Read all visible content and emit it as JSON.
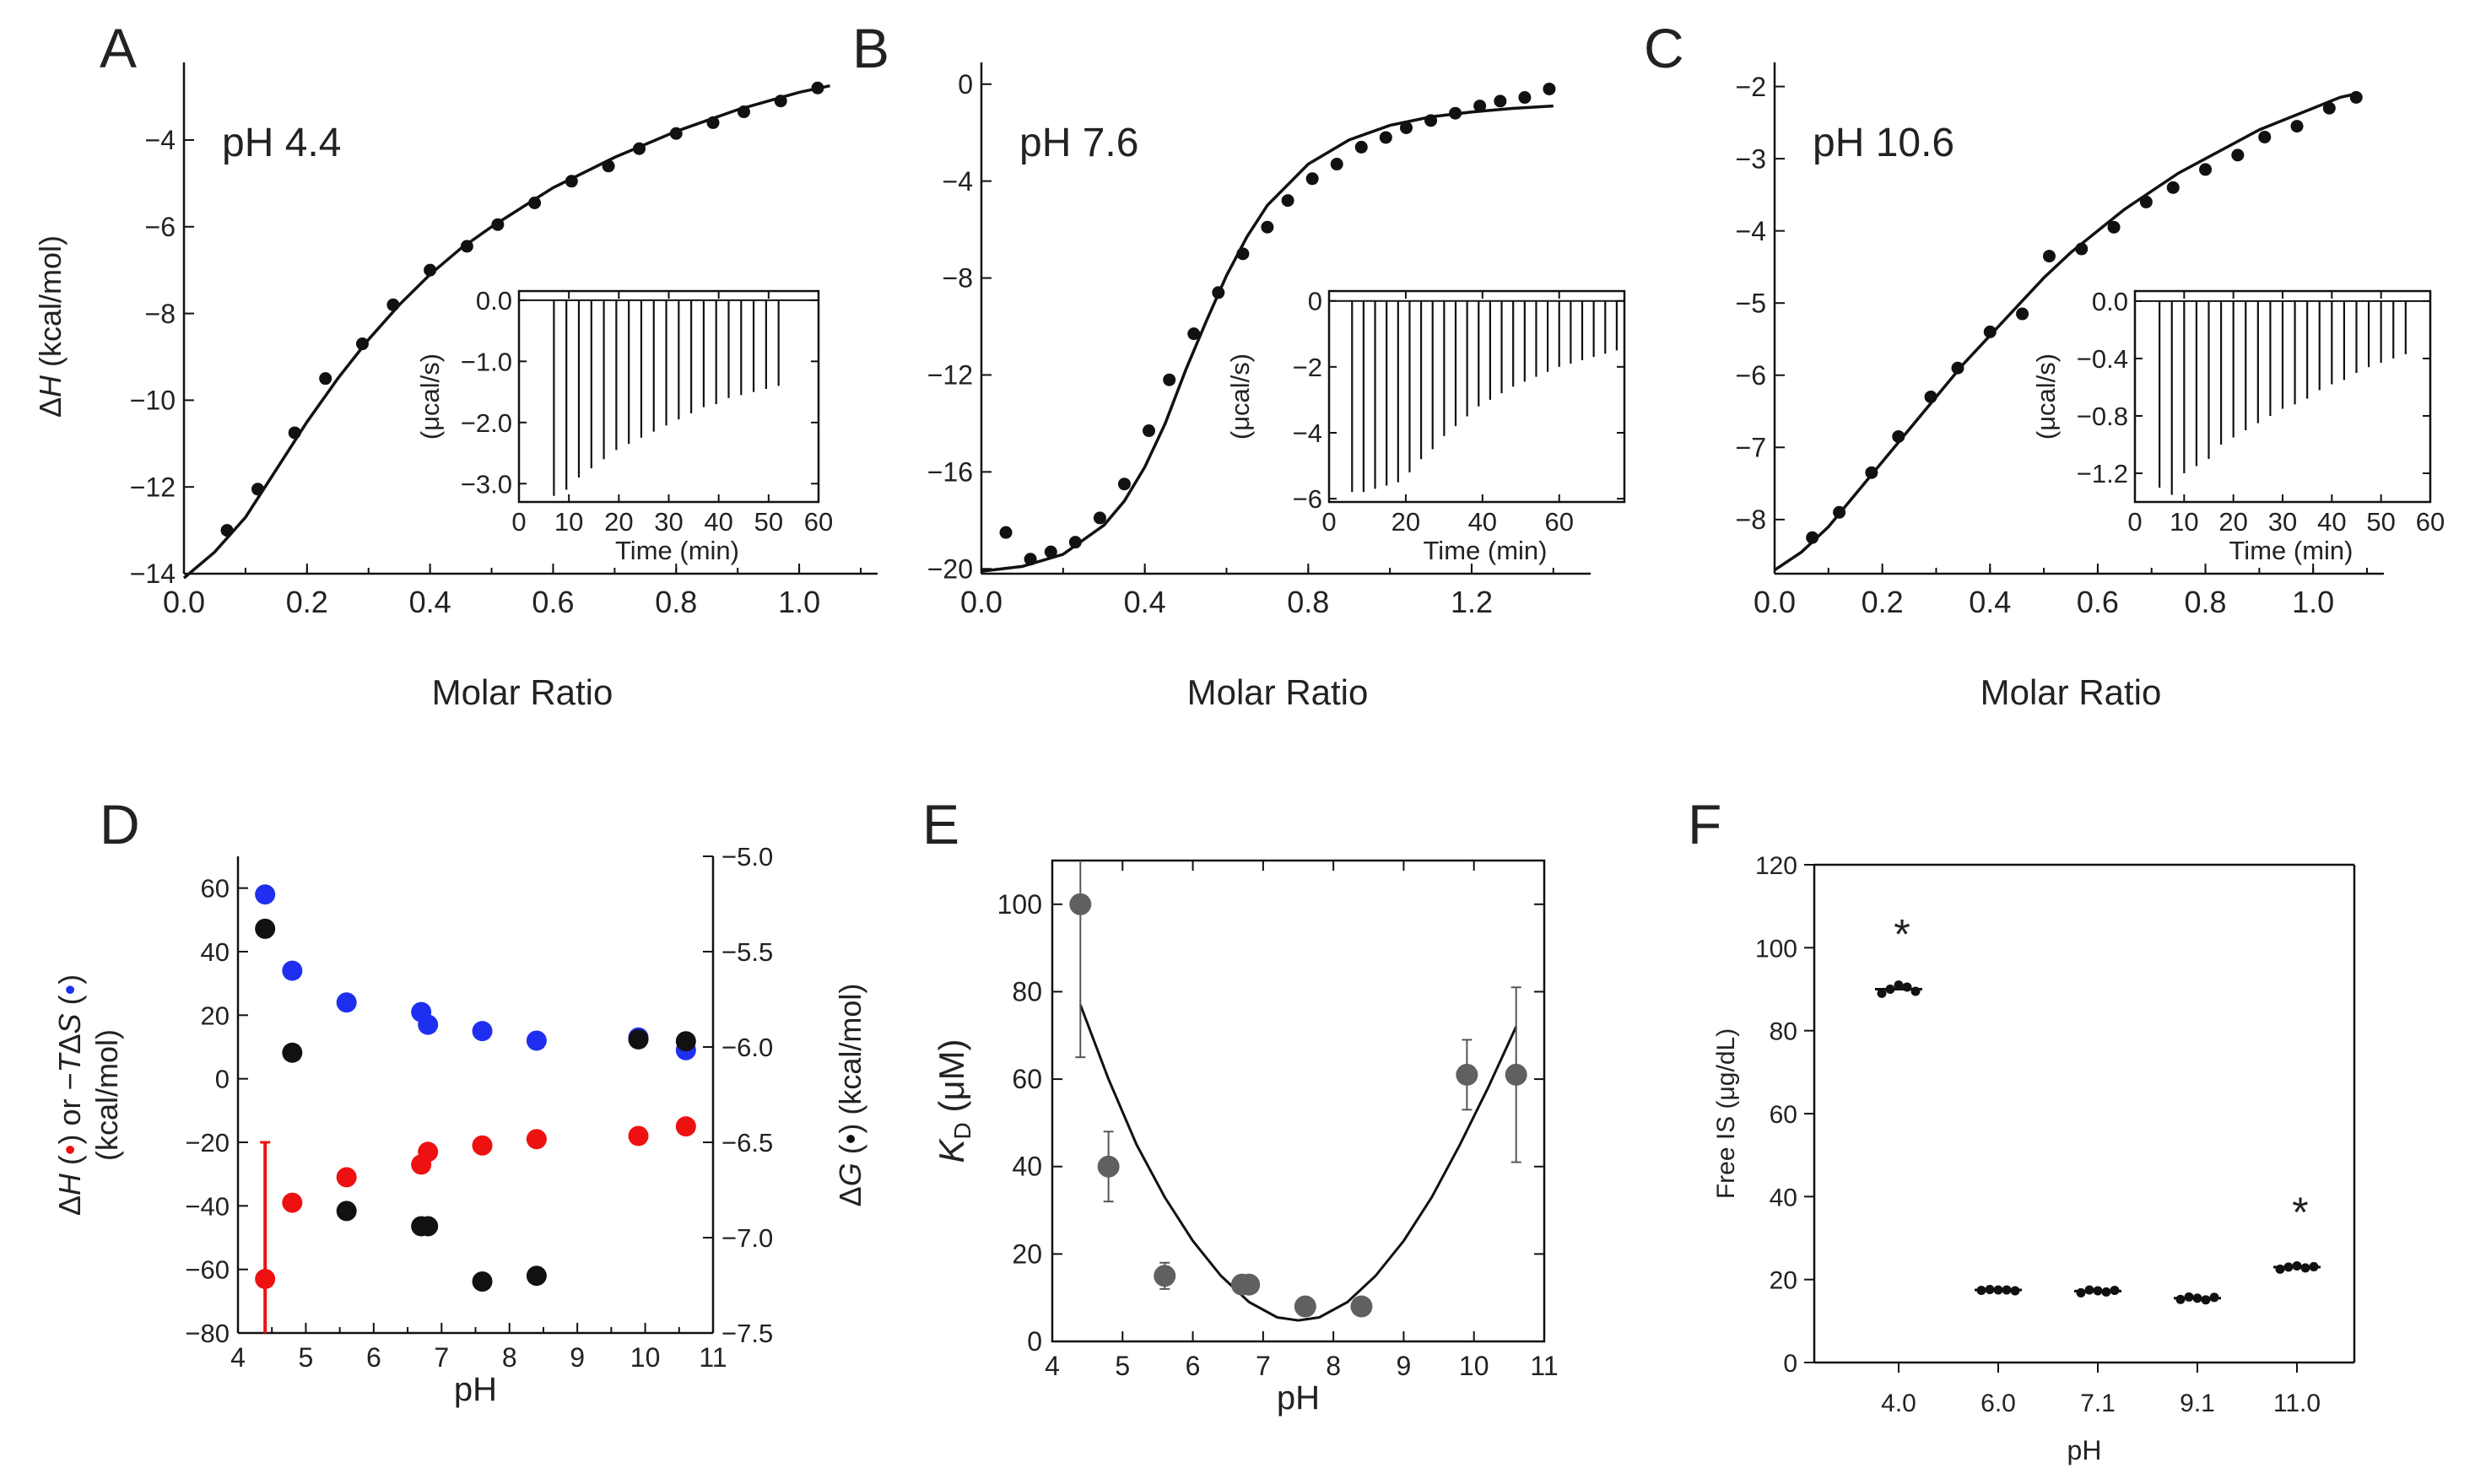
{
  "chart_data": [
    {
      "panel": "A",
      "type": "scatter",
      "annotation": "pH 4.4",
      "xlabel": "Molar Ratio",
      "ylabel_prefix": "Δ",
      "ylabel_var": "H",
      "ylabel_suffix": " (kcal/mol)",
      "xlim": [
        0.0,
        1.1
      ],
      "ylim": [
        -14,
        -2.6
      ],
      "xticks": [
        "0.0",
        "0.2",
        "0.4",
        "0.6",
        "0.8",
        "1.0"
      ],
      "xtick_values": [
        0,
        0.2,
        0.4,
        0.6,
        0.8,
        1.0
      ],
      "yticks": [
        "−14",
        "−12",
        "−10",
        "−8",
        "−6",
        "−4"
      ],
      "ytick_values": [
        -14,
        -12,
        -10,
        -8,
        -6,
        -4
      ],
      "points": [
        [
          0.07,
          -13.0
        ],
        [
          0.12,
          -12.05
        ],
        [
          0.18,
          -10.75
        ],
        [
          0.23,
          -9.5
        ],
        [
          0.29,
          -8.7
        ],
        [
          0.34,
          -7.8
        ],
        [
          0.4,
          -7.0
        ],
        [
          0.46,
          -6.45
        ],
        [
          0.51,
          -5.95
        ],
        [
          0.57,
          -5.45
        ],
        [
          0.63,
          -4.95
        ],
        [
          0.69,
          -4.6
        ],
        [
          0.74,
          -4.2
        ],
        [
          0.8,
          -3.85
        ],
        [
          0.86,
          -3.6
        ],
        [
          0.91,
          -3.35
        ],
        [
          0.97,
          -3.1
        ],
        [
          1.03,
          -2.8
        ]
      ],
      "fit": [
        [
          0.0,
          -14.1
        ],
        [
          0.05,
          -13.5
        ],
        [
          0.1,
          -12.7
        ],
        [
          0.15,
          -11.6
        ],
        [
          0.2,
          -10.5
        ],
        [
          0.25,
          -9.5
        ],
        [
          0.3,
          -8.6
        ],
        [
          0.35,
          -7.8
        ],
        [
          0.4,
          -7.1
        ],
        [
          0.45,
          -6.5
        ],
        [
          0.5,
          -6.0
        ],
        [
          0.55,
          -5.55
        ],
        [
          0.6,
          -5.1
        ],
        [
          0.65,
          -4.75
        ],
        [
          0.7,
          -4.4
        ],
        [
          0.75,
          -4.1
        ],
        [
          0.8,
          -3.8
        ],
        [
          0.85,
          -3.55
        ],
        [
          0.9,
          -3.3
        ],
        [
          0.95,
          -3.1
        ],
        [
          1.0,
          -2.9
        ],
        [
          1.05,
          -2.75
        ]
      ],
      "inset": {
        "xlabel": "Time (min)",
        "ylabel": "(μcal/s)",
        "xlim": [
          0,
          60
        ],
        "ylim": [
          -3.3,
          0.15
        ],
        "xticks": [
          "0",
          "10",
          "20",
          "30",
          "40",
          "50",
          "60"
        ],
        "xtick_values": [
          0,
          10,
          20,
          30,
          40,
          50,
          60
        ],
        "yticks": [
          "0.0",
          "−1.0",
          "−2.0",
          "−3.0"
        ],
        "ytick_values": [
          0,
          -1,
          -2,
          -3
        ],
        "spike_times": [
          7,
          9.5,
          12,
          14.5,
          17,
          19.5,
          22,
          24.5,
          27,
          29.5,
          32,
          34.5,
          37,
          39.5,
          42,
          44.5,
          47,
          49.5,
          52
        ],
        "spike_depths": [
          -3.2,
          -3.1,
          -2.9,
          -2.75,
          -2.6,
          -2.45,
          -2.35,
          -2.25,
          -2.15,
          -2.05,
          -1.95,
          -1.85,
          -1.75,
          -1.7,
          -1.6,
          -1.55,
          -1.5,
          -1.45,
          -1.4
        ]
      }
    },
    {
      "panel": "B",
      "type": "scatter",
      "annotation": "pH 7.6",
      "xlabel": "Molar Ratio",
      "xlim": [
        0.0,
        1.45
      ],
      "ylim": [
        -20.2,
        0.2
      ],
      "xticks": [
        "0.0",
        "0.4",
        "0.8",
        "1.2"
      ],
      "xtick_values": [
        0,
        0.4,
        0.8,
        1.2
      ],
      "yticks": [
        "−20",
        "−16",
        "−12",
        "−8",
        "−4",
        "0"
      ],
      "ytick_values": [
        -20,
        -16,
        -12,
        -8,
        -4,
        0
      ],
      "points": [
        [
          0.06,
          -18.5
        ],
        [
          0.12,
          -19.6
        ],
        [
          0.17,
          -19.3
        ],
        [
          0.23,
          -18.9
        ],
        [
          0.29,
          -17.9
        ],
        [
          0.35,
          -16.5
        ],
        [
          0.41,
          -14.3
        ],
        [
          0.46,
          -12.2
        ],
        [
          0.52,
          -10.3
        ],
        [
          0.58,
          -8.6
        ],
        [
          0.64,
          -7.0
        ],
        [
          0.7,
          -5.9
        ],
        [
          0.75,
          -4.8
        ],
        [
          0.81,
          -3.9
        ],
        [
          0.87,
          -3.3
        ],
        [
          0.93,
          -2.6
        ],
        [
          0.99,
          -2.2
        ],
        [
          1.04,
          -1.8
        ],
        [
          1.1,
          -1.5
        ],
        [
          1.16,
          -1.2
        ],
        [
          1.22,
          -0.9
        ],
        [
          1.27,
          -0.7
        ],
        [
          1.33,
          -0.55
        ],
        [
          1.39,
          -0.2
        ]
      ],
      "fit": [
        [
          0.0,
          -20.1
        ],
        [
          0.1,
          -19.9
        ],
        [
          0.2,
          -19.4
        ],
        [
          0.3,
          -18.2
        ],
        [
          0.35,
          -17.2
        ],
        [
          0.4,
          -15.8
        ],
        [
          0.45,
          -14.0
        ],
        [
          0.5,
          -11.8
        ],
        [
          0.55,
          -9.8
        ],
        [
          0.6,
          -7.9
        ],
        [
          0.65,
          -6.3
        ],
        [
          0.7,
          -5.0
        ],
        [
          0.8,
          -3.3
        ],
        [
          0.9,
          -2.3
        ],
        [
          1.0,
          -1.7
        ],
        [
          1.1,
          -1.35
        ],
        [
          1.2,
          -1.15
        ],
        [
          1.3,
          -1.0
        ],
        [
          1.4,
          -0.9
        ]
      ],
      "inset": {
        "xlabel": "Time (min)",
        "ylabel": "(μcal/s)",
        "xlim": [
          0,
          77
        ],
        "ylim": [
          -6.1,
          0.3
        ],
        "xticks": [
          "0",
          "20",
          "40",
          "60"
        ],
        "xtick_values": [
          0,
          20,
          40,
          60
        ],
        "yticks": [
          "0",
          "−2",
          "−4",
          "−6"
        ],
        "ytick_values": [
          0,
          -2,
          -4,
          -6
        ],
        "spike_times": [
          6,
          9,
          12,
          15,
          18,
          21,
          24,
          27,
          30,
          33,
          36,
          39,
          42,
          45,
          48,
          51,
          54,
          57,
          60,
          63,
          66,
          69,
          72,
          75
        ],
        "spike_depths": [
          -5.8,
          -5.8,
          -5.7,
          -5.6,
          -5.5,
          -5.2,
          -4.8,
          -4.5,
          -4.1,
          -3.8,
          -3.5,
          -3.2,
          -3.0,
          -2.8,
          -2.6,
          -2.45,
          -2.3,
          -2.15,
          -2.0,
          -1.9,
          -1.8,
          -1.7,
          -1.6,
          -1.5
        ]
      }
    },
    {
      "panel": "C",
      "type": "scatter",
      "annotation": "pH 10.6",
      "xlabel": "Molar Ratio",
      "xlim": [
        0.0,
        1.1
      ],
      "ylim": [
        -8.75,
        -1.9
      ],
      "xticks": [
        "0.0",
        "0.2",
        "0.4",
        "0.6",
        "0.8",
        "1.0"
      ],
      "xtick_values": [
        0,
        0.2,
        0.4,
        0.6,
        0.8,
        1.0
      ],
      "yticks": [
        "−8",
        "−7",
        "−6",
        "−5",
        "−4",
        "−3",
        "−2"
      ],
      "ytick_values": [
        -8,
        -7,
        -6,
        -5,
        -4,
        -3,
        -2
      ],
      "points": [
        [
          0.07,
          -8.25
        ],
        [
          0.12,
          -7.9
        ],
        [
          0.18,
          -7.35
        ],
        [
          0.23,
          -6.85
        ],
        [
          0.29,
          -6.3
        ],
        [
          0.34,
          -5.9
        ],
        [
          0.4,
          -5.4
        ],
        [
          0.46,
          -5.15
        ],
        [
          0.51,
          -4.35
        ],
        [
          0.57,
          -4.25
        ],
        [
          0.63,
          -3.95
        ],
        [
          0.69,
          -3.6
        ],
        [
          0.74,
          -3.4
        ],
        [
          0.8,
          -3.15
        ],
        [
          0.86,
          -2.95
        ],
        [
          0.91,
          -2.7
        ],
        [
          0.97,
          -2.55
        ],
        [
          1.03,
          -2.3
        ],
        [
          1.08,
          -2.15
        ]
      ],
      "fit": [
        [
          0.0,
          -8.7
        ],
        [
          0.05,
          -8.45
        ],
        [
          0.1,
          -8.1
        ],
        [
          0.15,
          -7.65
        ],
        [
          0.2,
          -7.2
        ],
        [
          0.25,
          -6.75
        ],
        [
          0.3,
          -6.3
        ],
        [
          0.35,
          -5.85
        ],
        [
          0.4,
          -5.45
        ],
        [
          0.45,
          -5.05
        ],
        [
          0.5,
          -4.65
        ],
        [
          0.55,
          -4.3
        ],
        [
          0.6,
          -4.0
        ],
        [
          0.65,
          -3.7
        ],
        [
          0.7,
          -3.45
        ],
        [
          0.75,
          -3.2
        ],
        [
          0.8,
          -3.0
        ],
        [
          0.85,
          -2.8
        ],
        [
          0.9,
          -2.6
        ],
        [
          0.95,
          -2.45
        ],
        [
          1.0,
          -2.3
        ],
        [
          1.05,
          -2.15
        ],
        [
          1.08,
          -2.1
        ]
      ],
      "inset": {
        "xlabel": "Time (min)",
        "ylabel": "(μcal/s)",
        "xlim": [
          0,
          60
        ],
        "ylim": [
          -1.4,
          0.07
        ],
        "xticks": [
          "0",
          "10",
          "20",
          "30",
          "40",
          "50",
          "60"
        ],
        "xtick_values": [
          0,
          10,
          20,
          30,
          40,
          50,
          60
        ],
        "yticks": [
          "0.0",
          "−0.4",
          "−0.8",
          "−1.2"
        ],
        "ytick_values": [
          0,
          -0.4,
          -0.8,
          -1.2
        ],
        "spike_times": [
          5,
          7.5,
          10,
          12.5,
          15,
          17.5,
          20,
          22.5,
          25,
          27.5,
          30,
          32.5,
          35,
          37.5,
          40,
          42.5,
          45,
          47.5,
          50,
          52.5,
          55
        ],
        "spike_depths": [
          -1.3,
          -1.35,
          -1.2,
          -1.15,
          -1.1,
          -1.0,
          -0.95,
          -0.9,
          -0.85,
          -0.8,
          -0.75,
          -0.72,
          -0.68,
          -0.62,
          -0.58,
          -0.55,
          -0.5,
          -0.46,
          -0.43,
          -0.4,
          -0.37
        ]
      }
    },
    {
      "panel": "D",
      "type": "scatter",
      "xlabel": "pH",
      "ylabel_left_line2": "(kcal/mol)",
      "ylabel_right_text": "(kcal/mol)",
      "xlim": [
        4,
        11
      ],
      "ylim_left": [
        -80,
        70
      ],
      "ylim_right": [
        -7.5,
        -5.0
      ],
      "xticks": [
        "4",
        "5",
        "6",
        "7",
        "8",
        "9",
        "10",
        "11"
      ],
      "xtick_values": [
        4,
        5,
        6,
        7,
        8,
        9,
        10,
        11
      ],
      "yticks_left": [
        "−80",
        "−60",
        "−40",
        "−20",
        "0",
        "20",
        "40",
        "60"
      ],
      "ytick_values_left": [
        -80,
        -60,
        -40,
        -20,
        0,
        20,
        40,
        60
      ],
      "yticks_right": [
        "−7.5",
        "−7.0",
        "−6.5",
        "−6.0",
        "−5.5",
        "−5.0"
      ],
      "ytick_values_right": [
        -7.5,
        -7.0,
        -6.5,
        -6.0,
        -5.5,
        -5.0
      ],
      "series": [
        {
          "name": "−TΔS",
          "color": "#1f2ff0",
          "axis": "left",
          "x": [
            4.4,
            4.8,
            5.6,
            6.7,
            6.8,
            7.6,
            8.4,
            9.9,
            10.6
          ],
          "y": [
            58,
            34,
            24,
            21,
            17,
            15,
            12,
            13,
            9
          ]
        },
        {
          "name": "ΔH",
          "color": "#ee1111",
          "axis": "left",
          "x": [
            4.4,
            4.8,
            5.6,
            6.7,
            6.8,
            7.6,
            8.4,
            9.9,
            10.6
          ],
          "y": [
            -63,
            -39,
            -31,
            -27,
            -23,
            -21,
            -19,
            -18,
            -15
          ]
        },
        {
          "name": "ΔG",
          "color": "#111111",
          "axis": "right",
          "x": [
            4.4,
            4.8,
            5.6,
            6.7,
            6.8,
            7.6,
            8.4,
            9.9,
            10.6
          ],
          "y": [
            -5.38,
            -6.03,
            -6.86,
            -6.94,
            -6.94,
            -7.23,
            -7.2,
            -5.96,
            -5.97
          ]
        }
      ],
      "error_bar": {
        "x": 4.4,
        "low": -80,
        "high": -20,
        "color": "#ee1111"
      }
    },
    {
      "panel": "E",
      "type": "scatter",
      "xlabel": "pH",
      "ylabel_unit": " (μM)",
      "xlim": [
        4,
        11
      ],
      "ylim": [
        0,
        110
      ],
      "xticks": [
        "4",
        "5",
        "6",
        "7",
        "8",
        "9",
        "10",
        "11"
      ],
      "xtick_values": [
        4,
        5,
        6,
        7,
        8,
        9,
        10,
        11
      ],
      "yticks": [
        "0",
        "20",
        "40",
        "60",
        "80",
        "100"
      ],
      "ytick_values": [
        0,
        20,
        40,
        60,
        80,
        100
      ],
      "points": [
        [
          4.4,
          100
        ],
        [
          4.8,
          40
        ],
        [
          5.6,
          15
        ],
        [
          6.7,
          13
        ],
        [
          6.8,
          13
        ],
        [
          7.6,
          8
        ],
        [
          8.4,
          8
        ],
        [
          9.9,
          61
        ],
        [
          10.6,
          61
        ]
      ],
      "errors": [
        [
          4.4,
          65,
          110
        ],
        [
          4.8,
          32,
          48
        ],
        [
          5.6,
          12,
          18
        ],
        [
          6.7,
          11,
          15
        ],
        [
          6.8,
          11,
          15
        ],
        [
          7.6,
          6,
          10
        ],
        [
          8.4,
          6,
          10
        ],
        [
          9.9,
          53,
          69
        ],
        [
          10.6,
          41,
          81
        ]
      ],
      "fit": [
        [
          4.4,
          77
        ],
        [
          4.8,
          60
        ],
        [
          5.2,
          45
        ],
        [
          5.6,
          33
        ],
        [
          6.0,
          23
        ],
        [
          6.4,
          15
        ],
        [
          6.8,
          9
        ],
        [
          7.2,
          5.5
        ],
        [
          7.5,
          4.8
        ],
        [
          7.8,
          5.5
        ],
        [
          8.2,
          9
        ],
        [
          8.6,
          15
        ],
        [
          9.0,
          23
        ],
        [
          9.4,
          33
        ],
        [
          9.8,
          45
        ],
        [
          10.2,
          58
        ],
        [
          10.6,
          72
        ]
      ],
      "color": "#606060"
    },
    {
      "panel": "F",
      "type": "scatter",
      "xlabel": "pH",
      "ylabel": "Free IS (μg/dL)",
      "ylim": [
        0,
        120
      ],
      "categories": [
        "4.0",
        "6.0",
        "7.1",
        "9.1",
        "11.0"
      ],
      "yticks": [
        "0",
        "20",
        "40",
        "60",
        "80",
        "100",
        "120"
      ],
      "ytick_values": [
        0,
        20,
        40,
        60,
        80,
        100,
        120
      ],
      "means": [
        90,
        17.5,
        17.2,
        15.5,
        23
      ],
      "points": [
        [
          89,
          90,
          91,
          90.5,
          89.5
        ],
        [
          17.4,
          17.6,
          17.5,
          17.5,
          17.3
        ],
        [
          16.8,
          17.5,
          17.3,
          17.0,
          17.4
        ],
        [
          15.2,
          15.8,
          15.5,
          15.1,
          15.7
        ],
        [
          22.5,
          23.0,
          23.3,
          22.8,
          23.1
        ]
      ],
      "significance": [
        "*",
        "",
        "",
        "",
        "*"
      ]
    }
  ]
}
